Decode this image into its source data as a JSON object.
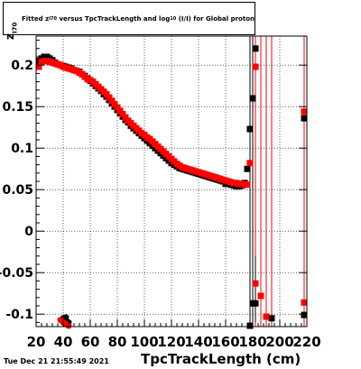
{
  "timestamp": "Tue Dec 21 21:55:49 2021",
  "title": {
    "pre": "Fitted",
    "z": "z",
    "z_sub": "I70",
    "mid": "versus TpcTrackLength and log",
    "log_sub": "10",
    "post": "(I/I) for Global proton"
  },
  "ylabel": {
    "main": "z",
    "sub": "I70"
  },
  "colors": {
    "black_series": "#000000",
    "red_series": "#ff0000",
    "grid": "#000000",
    "frame": "#000000"
  },
  "chart_data": {
    "type": "scatter",
    "title": "Fitted z_I70 versus TpcTrackLength and log10(I/I) for Global proton",
    "xlabel": "TpcTrackLength (cm)",
    "ylabel": "z_I70",
    "xlim": [
      20,
      220
    ],
    "ylim": [
      -0.115,
      0.235
    ],
    "xticks": [
      20,
      40,
      60,
      80,
      100,
      120,
      140,
      160,
      180,
      200,
      220
    ],
    "yticks": [
      -0.1,
      -0.05,
      0,
      0.05,
      0.1,
      0.15,
      0.2
    ],
    "ytick_labels": [
      "-0.1",
      "-0.05",
      "0",
      "0.05",
      "0.1",
      "0.15",
      "0.2"
    ],
    "grid": true,
    "series": [
      {
        "color": "#000000",
        "points": [
          [
            22,
            0.205
          ],
          [
            24,
            0.208
          ],
          [
            26,
            0.21
          ],
          [
            28,
            0.21
          ],
          [
            30,
            0.208
          ],
          [
            32,
            0.206
          ],
          [
            34,
            0.203
          ],
          [
            36,
            0.201
          ],
          [
            38,
            0.2
          ],
          [
            40,
            0.199
          ],
          [
            42,
            0.198
          ],
          [
            44,
            0.197
          ],
          [
            46,
            0.196
          ],
          [
            48,
            0.194
          ],
          [
            50,
            0.193
          ],
          [
            52,
            0.192
          ],
          [
            54,
            0.189
          ],
          [
            56,
            0.187
          ],
          [
            58,
            0.184
          ],
          [
            60,
            0.181
          ],
          [
            62,
            0.178
          ],
          [
            64,
            0.175
          ],
          [
            66,
            0.172
          ],
          [
            68,
            0.169
          ],
          [
            70,
            0.165
          ],
          [
            72,
            0.162
          ],
          [
            74,
            0.158
          ],
          [
            76,
            0.154
          ],
          [
            78,
            0.15
          ],
          [
            80,
            0.146
          ],
          [
            82,
            0.142
          ],
          [
            84,
            0.138
          ],
          [
            86,
            0.134
          ],
          [
            88,
            0.131
          ],
          [
            90,
            0.127
          ],
          [
            92,
            0.124
          ],
          [
            94,
            0.121
          ],
          [
            96,
            0.118
          ],
          [
            98,
            0.115
          ],
          [
            100,
            0.112
          ],
          [
            102,
            0.109
          ],
          [
            104,
            0.106
          ],
          [
            106,
            0.103
          ],
          [
            108,
            0.1
          ],
          [
            110,
            0.097
          ],
          [
            112,
            0.094
          ],
          [
            114,
            0.091
          ],
          [
            116,
            0.088
          ],
          [
            118,
            0.085
          ],
          [
            120,
            0.082
          ],
          [
            122,
            0.08
          ],
          [
            124,
            0.078
          ],
          [
            126,
            0.076
          ],
          [
            128,
            0.075
          ],
          [
            130,
            0.074
          ],
          [
            132,
            0.073
          ],
          [
            134,
            0.072
          ],
          [
            136,
            0.071
          ],
          [
            138,
            0.07
          ],
          [
            140,
            0.069
          ],
          [
            142,
            0.068
          ],
          [
            144,
            0.067
          ],
          [
            146,
            0.066
          ],
          [
            148,
            0.065
          ],
          [
            150,
            0.064
          ],
          [
            152,
            0.063
          ],
          [
            154,
            0.062
          ],
          [
            156,
            0.061
          ],
          [
            158,
            0.06
          ],
          [
            160,
            0.057
          ],
          [
            162,
            0.057
          ],
          [
            164,
            0.056
          ],
          [
            166,
            0.055
          ],
          [
            168,
            0.054
          ],
          [
            170,
            0.054
          ],
          [
            172,
            0.055
          ],
          [
            174,
            0.058
          ],
          [
            176,
            0.075
          ],
          [
            178,
            0.123
          ],
          [
            180,
            0.16
          ],
          [
            182,
            0.22
          ],
          [
            40,
            -0.105
          ],
          [
            42,
            -0.104
          ],
          [
            44,
            -0.11
          ],
          [
            178,
            -0.114
          ],
          [
            180,
            -0.087
          ],
          [
            182,
            -0.087
          ],
          [
            190,
            -0.103
          ],
          [
            194,
            -0.105
          ],
          [
            218,
            -0.101
          ],
          [
            218,
            0.136
          ]
        ]
      },
      {
        "color": "#ff0000",
        "points": [
          [
            22,
            0.198
          ],
          [
            24,
            0.204
          ],
          [
            26,
            0.205
          ],
          [
            28,
            0.205
          ],
          [
            30,
            0.204
          ],
          [
            32,
            0.203
          ],
          [
            34,
            0.202
          ],
          [
            36,
            0.201
          ],
          [
            38,
            0.2
          ],
          [
            40,
            0.198
          ],
          [
            42,
            0.197
          ],
          [
            44,
            0.196
          ],
          [
            46,
            0.195
          ],
          [
            48,
            0.194
          ],
          [
            50,
            0.193
          ],
          [
            52,
            0.191
          ],
          [
            54,
            0.189
          ],
          [
            56,
            0.186
          ],
          [
            58,
            0.183
          ],
          [
            60,
            0.182
          ],
          [
            62,
            0.18
          ],
          [
            64,
            0.177
          ],
          [
            66,
            0.174
          ],
          [
            68,
            0.171
          ],
          [
            70,
            0.168
          ],
          [
            72,
            0.165
          ],
          [
            74,
            0.161
          ],
          [
            76,
            0.157
          ],
          [
            78,
            0.153
          ],
          [
            80,
            0.149
          ],
          [
            82,
            0.145
          ],
          [
            84,
            0.141
          ],
          [
            86,
            0.137
          ],
          [
            88,
            0.133
          ],
          [
            90,
            0.13
          ],
          [
            92,
            0.127
          ],
          [
            94,
            0.124
          ],
          [
            96,
            0.121
          ],
          [
            98,
            0.118
          ],
          [
            100,
            0.116
          ],
          [
            102,
            0.113
          ],
          [
            104,
            0.111
          ],
          [
            106,
            0.108
          ],
          [
            108,
            0.105
          ],
          [
            110,
            0.102
          ],
          [
            112,
            0.099
          ],
          [
            114,
            0.096
          ],
          [
            116,
            0.093
          ],
          [
            118,
            0.09
          ],
          [
            120,
            0.087
          ],
          [
            122,
            0.084
          ],
          [
            124,
            0.081
          ],
          [
            126,
            0.079
          ],
          [
            128,
            0.077
          ],
          [
            130,
            0.076
          ],
          [
            132,
            0.075
          ],
          [
            134,
            0.074
          ],
          [
            136,
            0.073
          ],
          [
            138,
            0.072
          ],
          [
            140,
            0.071
          ],
          [
            142,
            0.07
          ],
          [
            144,
            0.069
          ],
          [
            146,
            0.068
          ],
          [
            148,
            0.067
          ],
          [
            150,
            0.066
          ],
          [
            152,
            0.065
          ],
          [
            154,
            0.064
          ],
          [
            156,
            0.063
          ],
          [
            158,
            0.062
          ],
          [
            160,
            0.061
          ],
          [
            162,
            0.06
          ],
          [
            164,
            0.059
          ],
          [
            166,
            0.058
          ],
          [
            168,
            0.058
          ],
          [
            170,
            0.057
          ],
          [
            172,
            0.057
          ],
          [
            174,
            0.056
          ],
          [
            176,
            0.056
          ],
          [
            178,
            0.082
          ],
          [
            182,
            0.198
          ],
          [
            38,
            -0.107
          ],
          [
            40,
            -0.11
          ],
          [
            42,
            -0.112
          ],
          [
            44,
            -0.114
          ],
          [
            182,
            -0.063
          ],
          [
            186,
            -0.078
          ],
          [
            190,
            -0.103
          ],
          [
            218,
            -0.086
          ],
          [
            218,
            0.144
          ]
        ]
      }
    ],
    "error_bars": [
      {
        "x": 178,
        "ylo": -0.115,
        "yhi": 0.235,
        "color": "#000000"
      },
      {
        "x": 180,
        "ylo": -0.11,
        "yhi": 0.235,
        "color": "#000000"
      },
      {
        "x": 182,
        "ylo": -0.115,
        "yhi": 0.235,
        "color": "#ff0000"
      },
      {
        "x": 186,
        "ylo": -0.115,
        "yhi": 0.235,
        "color": "#ff0000"
      },
      {
        "x": 190,
        "ylo": -0.115,
        "yhi": 0.235,
        "color": "#ff0000"
      },
      {
        "x": 194,
        "ylo": -0.115,
        "yhi": 0.235,
        "color": "#ff0000"
      },
      {
        "x": 218,
        "ylo": -0.115,
        "yhi": 0.235,
        "color": "#ff0000"
      },
      {
        "x": 182,
        "ylo": -0.11,
        "yhi": -0.03,
        "color": "#000000"
      }
    ]
  }
}
